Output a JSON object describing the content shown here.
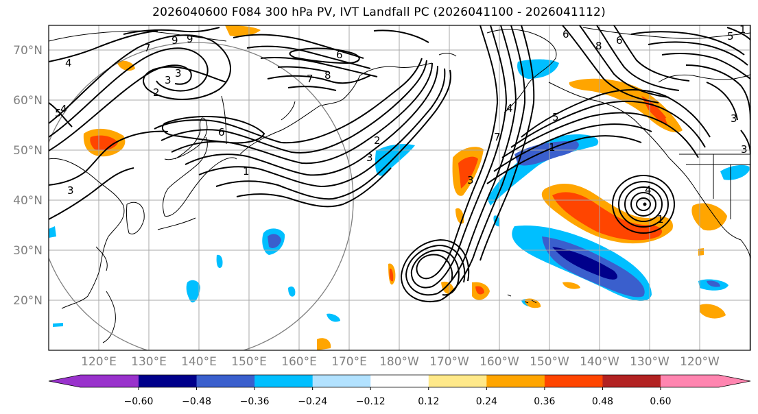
{
  "title": "2026040600 F084 300 hPa PV, IVT Landfall PC (2026041100 - 2026041112)",
  "lat_labels": [
    "70°N",
    "60°N",
    "50°N",
    "40°N",
    "30°N",
    "20°N"
  ],
  "lon_labels": [
    "120°E",
    "130°E",
    "140°E",
    "150°E",
    "160°E",
    "170°E",
    "180°W",
    "170°W",
    "160°W",
    "150°W",
    "140°W",
    "130°W",
    "120°W"
  ],
  "colorbar": {
    "ticks": [
      "−0.60",
      "−0.48",
      "−0.36",
      "−0.24",
      "−0.12",
      "0.12",
      "0.24",
      "0.36",
      "0.48",
      "0.60"
    ],
    "colors": [
      "#9932cc",
      "#00008b",
      "#3a5fcd",
      "#00bfff",
      "#b2e2ff",
      "#ffffff",
      "#ffe98a",
      "#ffa500",
      "#ff4500",
      "#b22222",
      "#ff85b0"
    ]
  },
  "contour_labels": [
    "4",
    "9",
    "9",
    "7",
    "3",
    "2",
    "3",
    "1",
    "6",
    "7",
    "8",
    "6",
    "5",
    "4",
    "3",
    "3",
    "2",
    "1",
    "4",
    "3",
    "7",
    "1",
    "6",
    "8",
    "6",
    "5",
    "1",
    "4",
    "3",
    "5",
    "3"
  ]
}
